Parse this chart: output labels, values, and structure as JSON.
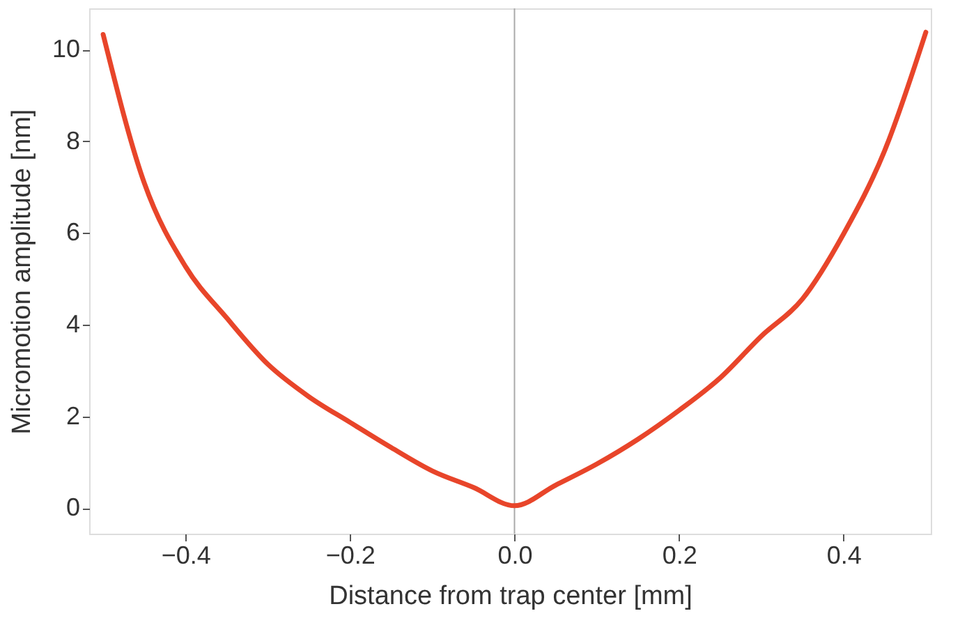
{
  "chart_data": {
    "type": "line",
    "xlabel": "Distance from trap center  [mm]",
    "ylabel": "Micromotion amplitude  [nm]",
    "x": [
      -0.5,
      -0.45,
      -0.4,
      -0.35,
      -0.3,
      -0.25,
      -0.2,
      -0.15,
      -0.1,
      -0.05,
      0.0,
      0.05,
      0.1,
      0.15,
      0.2,
      0.25,
      0.3,
      0.35,
      0.4,
      0.45,
      0.5
    ],
    "series": [
      {
        "color": "#e8452a",
        "values": [
          10.33,
          7.09,
          5.27,
          4.15,
          3.14,
          2.43,
          1.87,
          1.32,
          0.81,
          0.45,
          0.05,
          0.5,
          0.96,
          1.5,
          2.13,
          2.84,
          3.75,
          4.56,
          5.98,
          7.8,
          10.38
        ]
      }
    ],
    "xlim": [
      -0.517,
      0.506
    ],
    "ylim": [
      -0.56,
      10.9
    ],
    "xticks": [
      -0.4,
      -0.2,
      {
        "value": 0.0,
        "label": "0.0"
      },
      0.2,
      0.4
    ],
    "yticks": [
      0,
      2,
      4,
      6,
      8,
      10
    ],
    "ref_lines": [
      {
        "axis": "x",
        "value": 0.0,
        "color": "#aaaaaa"
      }
    ],
    "grid": false,
    "marker": "none",
    "line_style": "solid"
  }
}
